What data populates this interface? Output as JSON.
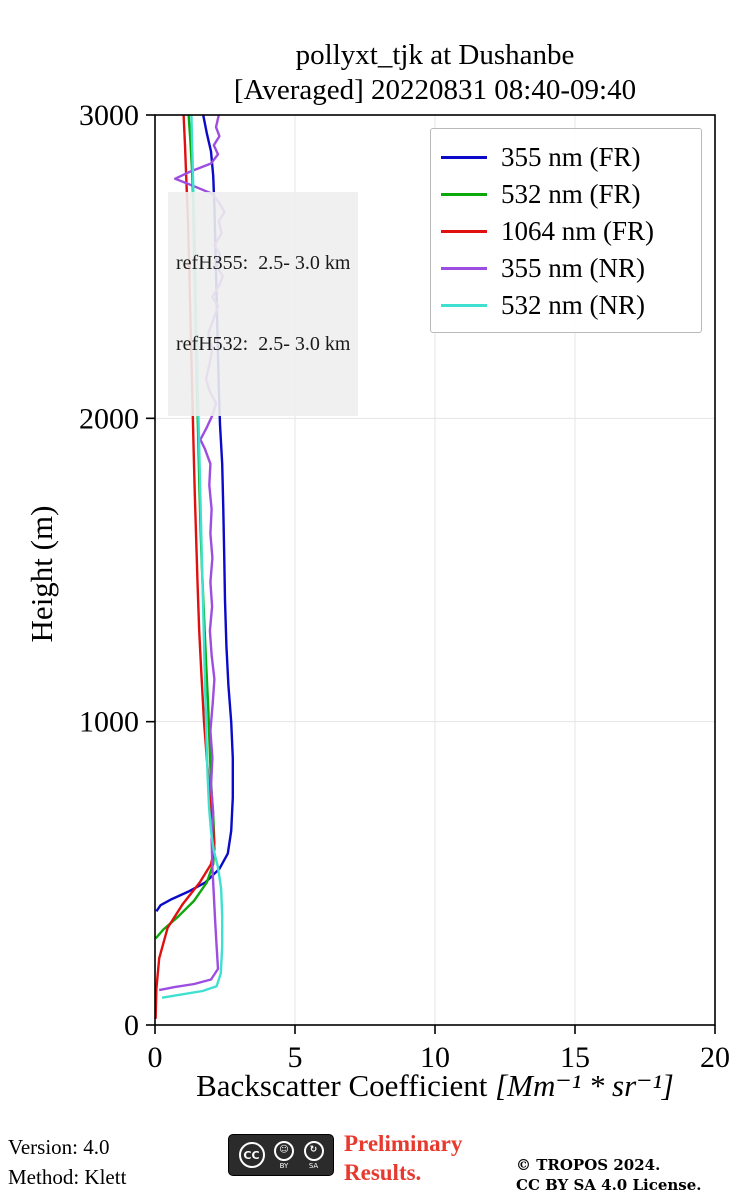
{
  "header": {
    "title": "pollyxt_tjk at Dushanbe",
    "subtitle": "[Averaged] 20220831 08:40-09:40"
  },
  "axes": {
    "xlabel_text": "Backscatter Coefficient ",
    "xlabel_units": "[Mm⁻¹ * sr⁻¹]",
    "ylabel": "Height (m)"
  },
  "annotation": {
    "line1": "refH355:  2.5- 3.0 km",
    "line2": "refH532:  2.5- 3.0 km"
  },
  "footer": {
    "version": "Version: 4.0",
    "method": "Method: Klett",
    "preliminary_line1": "Preliminary",
    "preliminary_line2": "Results.",
    "preliminary_color": "#e8392e",
    "copyright_line1": "© TROPOS 2024.",
    "copyright_line2": "CC BY SA 4.0 License.",
    "cc": {
      "cc": "CC",
      "by": "BY",
      "sa": "SA"
    }
  },
  "chart_data": {
    "type": "line",
    "title": "pollyxt_tjk at Dushanbe",
    "subtitle": "[Averaged] 20220831 08:40-09:40",
    "xlabel": "Backscatter Coefficient [Mm⁻¹ * sr⁻¹]",
    "ylabel": "Height (m)",
    "xlim": [
      0,
      20
    ],
    "ylim": [
      0,
      3000
    ],
    "xticks": [
      0,
      5,
      10,
      15,
      20
    ],
    "yticks": [
      0,
      1000,
      2000,
      3000
    ],
    "grid": true,
    "legend_position": "upper right",
    "annotations": [
      "refH355:  2.5- 3.0 km",
      "refH532:  2.5- 3.0 km"
    ],
    "series": [
      {
        "name": "355 nm (FR)",
        "color": "#0a0ac8",
        "points": [
          [
            0.05,
            375
          ],
          [
            0.2,
            395
          ],
          [
            0.6,
            415
          ],
          [
            1.2,
            440
          ],
          [
            1.8,
            470
          ],
          [
            2.3,
            515
          ],
          [
            2.6,
            565
          ],
          [
            2.72,
            640
          ],
          [
            2.78,
            750
          ],
          [
            2.78,
            880
          ],
          [
            2.72,
            1000
          ],
          [
            2.62,
            1120
          ],
          [
            2.55,
            1250
          ],
          [
            2.5,
            1400
          ],
          [
            2.47,
            1550
          ],
          [
            2.44,
            1700
          ],
          [
            2.4,
            1850
          ],
          [
            2.32,
            1980
          ],
          [
            2.28,
            2100
          ],
          [
            2.24,
            2250
          ],
          [
            2.2,
            2400
          ],
          [
            2.16,
            2550
          ],
          [
            2.12,
            2700
          ],
          [
            2.08,
            2800
          ],
          [
            2.0,
            2880
          ],
          [
            1.85,
            2940
          ],
          [
            1.72,
            3000
          ]
        ]
      },
      {
        "name": "532 nm (FR)",
        "color": "#0ca80c",
        "points": [
          [
            0.02,
            285
          ],
          [
            0.3,
            315
          ],
          [
            0.8,
            355
          ],
          [
            1.4,
            410
          ],
          [
            1.85,
            470
          ],
          [
            2.08,
            530
          ],
          [
            2.12,
            600
          ],
          [
            2.08,
            690
          ],
          [
            2.0,
            800
          ],
          [
            1.95,
            920
          ],
          [
            1.9,
            1050
          ],
          [
            1.82,
            1200
          ],
          [
            1.75,
            1350
          ],
          [
            1.68,
            1500
          ],
          [
            1.62,
            1650
          ],
          [
            1.58,
            1800
          ],
          [
            1.54,
            1950
          ],
          [
            1.5,
            2100
          ],
          [
            1.47,
            2250
          ],
          [
            1.44,
            2400
          ],
          [
            1.4,
            2550
          ],
          [
            1.37,
            2700
          ],
          [
            1.32,
            2820
          ],
          [
            1.26,
            2920
          ],
          [
            1.2,
            3000
          ]
        ]
      },
      {
        "name": "1064 nm (FR)",
        "color": "#e01010",
        "points": [
          [
            0.02,
            20
          ],
          [
            0.05,
            120
          ],
          [
            0.15,
            220
          ],
          [
            0.45,
            320
          ],
          [
            1.0,
            400
          ],
          [
            1.6,
            470
          ],
          [
            2.0,
            530
          ],
          [
            2.12,
            580
          ],
          [
            2.08,
            650
          ],
          [
            1.95,
            760
          ],
          [
            1.85,
            880
          ],
          [
            1.75,
            1000
          ],
          [
            1.66,
            1150
          ],
          [
            1.58,
            1300
          ],
          [
            1.52,
            1450
          ],
          [
            1.47,
            1600
          ],
          [
            1.42,
            1750
          ],
          [
            1.38,
            1900
          ],
          [
            1.34,
            2050
          ],
          [
            1.3,
            2200
          ],
          [
            1.26,
            2350
          ],
          [
            1.22,
            2500
          ],
          [
            1.18,
            2650
          ],
          [
            1.12,
            2780
          ],
          [
            1.07,
            2900
          ],
          [
            1.02,
            3000
          ]
        ]
      },
      {
        "name": "355 nm (NR)",
        "color": "#9d4ee0",
        "points": [
          [
            0.15,
            115
          ],
          [
            0.7,
            125
          ],
          [
            1.4,
            135
          ],
          [
            2.0,
            150
          ],
          [
            2.25,
            185
          ],
          [
            2.2,
            260
          ],
          [
            2.15,
            340
          ],
          [
            2.1,
            430
          ],
          [
            2.05,
            520
          ],
          [
            2.02,
            610
          ],
          [
            2.08,
            700
          ],
          [
            2.0,
            790
          ],
          [
            2.05,
            880
          ],
          [
            1.98,
            970
          ],
          [
            2.06,
            1060
          ],
          [
            2.12,
            1140
          ],
          [
            2.02,
            1220
          ],
          [
            1.96,
            1300
          ],
          [
            2.04,
            1380
          ],
          [
            1.98,
            1460
          ],
          [
            2.05,
            1540
          ],
          [
            1.98,
            1620
          ],
          [
            2.02,
            1700
          ],
          [
            1.94,
            1780
          ],
          [
            1.98,
            1850
          ],
          [
            1.78,
            1900
          ],
          [
            1.62,
            1930
          ],
          [
            1.85,
            1970
          ],
          [
            2.05,
            2010
          ],
          [
            2.18,
            2050
          ],
          [
            1.95,
            2090
          ],
          [
            1.82,
            2130
          ],
          [
            1.95,
            2180
          ],
          [
            2.05,
            2230
          ],
          [
            1.9,
            2280
          ],
          [
            2.1,
            2330
          ],
          [
            2.25,
            2370
          ],
          [
            2.05,
            2400
          ],
          [
            2.3,
            2440
          ],
          [
            2.42,
            2470
          ],
          [
            2.2,
            2500
          ],
          [
            2.32,
            2540
          ],
          [
            2.12,
            2570
          ],
          [
            2.38,
            2610
          ],
          [
            2.28,
            2650
          ],
          [
            2.48,
            2680
          ],
          [
            2.3,
            2710
          ],
          [
            2.05,
            2740
          ],
          [
            1.4,
            2765
          ],
          [
            0.72,
            2790
          ],
          [
            1.3,
            2815
          ],
          [
            2.0,
            2840
          ],
          [
            2.25,
            2870
          ],
          [
            2.1,
            2900
          ],
          [
            2.3,
            2930
          ],
          [
            2.18,
            2960
          ],
          [
            2.28,
            3000
          ]
        ]
      },
      {
        "name": "532 nm (NR)",
        "color": "#3fe0d0",
        "points": [
          [
            0.25,
            90
          ],
          [
            0.9,
            100
          ],
          [
            1.7,
            112
          ],
          [
            2.2,
            128
          ],
          [
            2.35,
            170
          ],
          [
            2.4,
            260
          ],
          [
            2.4,
            360
          ],
          [
            2.36,
            450
          ],
          [
            2.25,
            520
          ],
          [
            2.1,
            575
          ],
          [
            2.0,
            640
          ],
          [
            1.93,
            720
          ],
          [
            1.88,
            820
          ],
          [
            1.84,
            940
          ],
          [
            1.8,
            1080
          ],
          [
            1.76,
            1220
          ],
          [
            1.72,
            1370
          ],
          [
            1.68,
            1520
          ],
          [
            1.64,
            1670
          ],
          [
            1.6,
            1820
          ],
          [
            1.56,
            1970
          ],
          [
            1.52,
            2120
          ],
          [
            1.48,
            2270
          ],
          [
            1.45,
            2420
          ],
          [
            1.42,
            2570
          ],
          [
            1.38,
            2720
          ],
          [
            1.34,
            2860
          ],
          [
            1.3,
            3000
          ]
        ]
      }
    ]
  }
}
